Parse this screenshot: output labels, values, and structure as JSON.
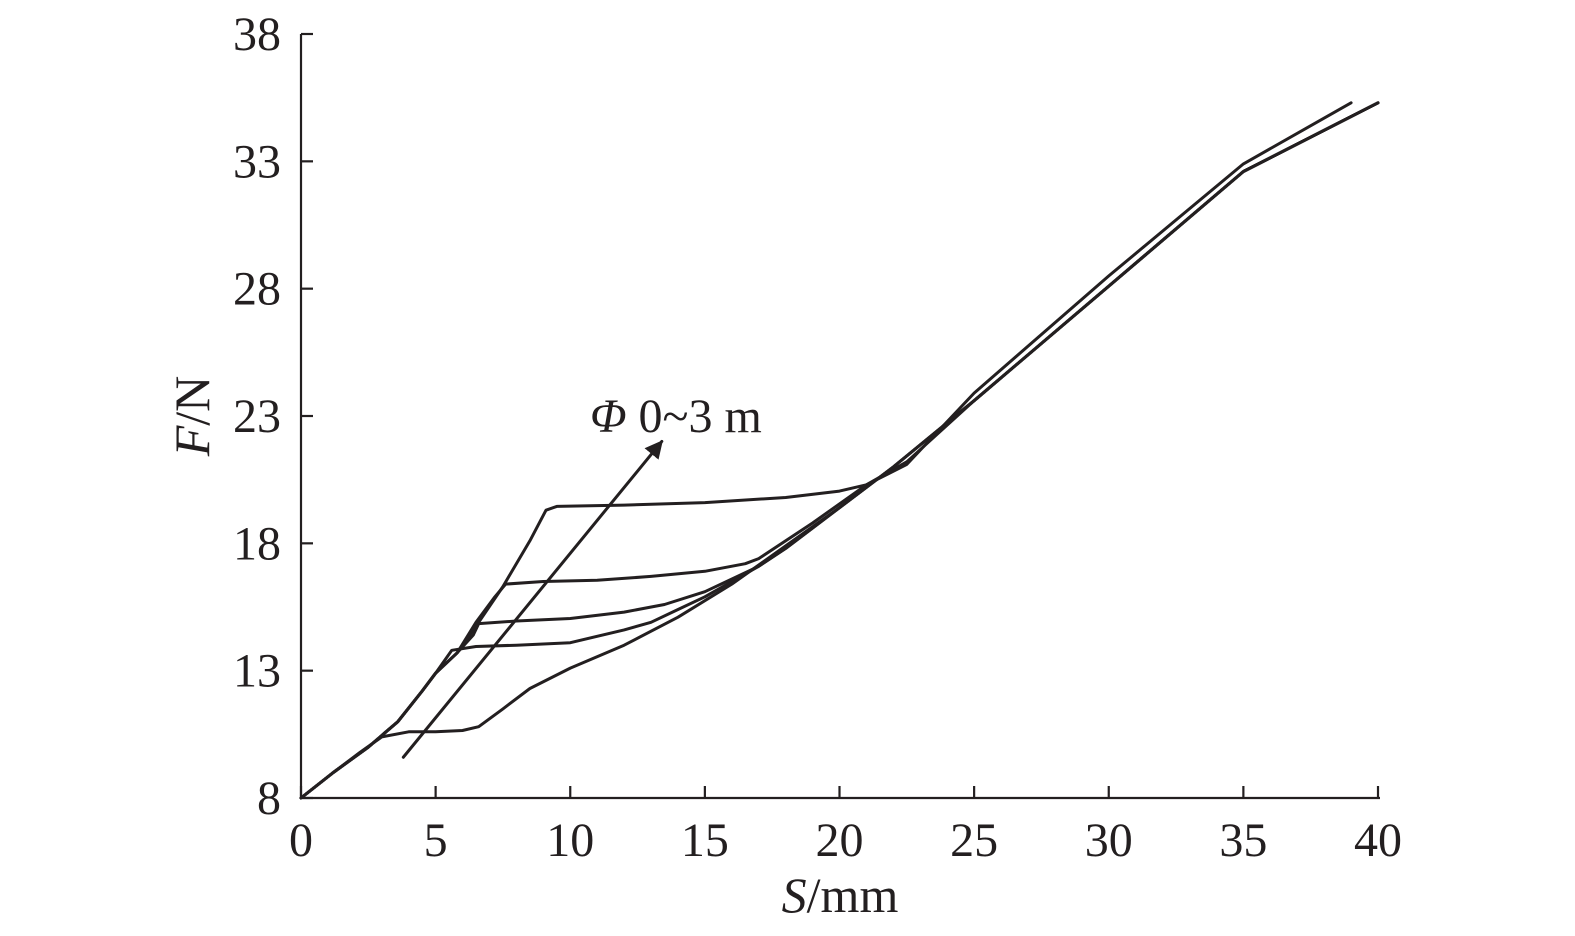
{
  "chart_data": {
    "type": "line",
    "xlabel": {
      "var": "S",
      "unit": "/mm"
    },
    "ylabel": {
      "var": "F",
      "unit": "/N"
    },
    "xlim": [
      0,
      40
    ],
    "ylim": [
      8,
      38
    ],
    "xticks": [
      0,
      5,
      10,
      15,
      20,
      25,
      30,
      35,
      40
    ],
    "yticks": [
      8,
      13,
      18,
      23,
      28,
      33,
      38
    ],
    "grid": false,
    "series": [
      {
        "points": [
          [
            0,
            8
          ],
          [
            1.2,
            9
          ],
          [
            2.2,
            9.8
          ],
          [
            3,
            10.4
          ],
          [
            4,
            10.6
          ],
          [
            5,
            10.6
          ],
          [
            6,
            10.65
          ],
          [
            6.6,
            10.8
          ],
          [
            7.5,
            11.5
          ],
          [
            8.5,
            12.3
          ],
          [
            10,
            13.1
          ],
          [
            12,
            14.0
          ],
          [
            14,
            15.1
          ],
          [
            16,
            16.4
          ],
          [
            18,
            17.9
          ],
          [
            20,
            19.4
          ],
          [
            22,
            21
          ],
          [
            25,
            23.6
          ],
          [
            30,
            28.1
          ],
          [
            35,
            32.6
          ],
          [
            40,
            35.3
          ]
        ]
      },
      {
        "points": [
          [
            0,
            8
          ],
          [
            1.2,
            9
          ],
          [
            2.5,
            10
          ],
          [
            3.6,
            11
          ],
          [
            4.5,
            12.2
          ],
          [
            5,
            12.9
          ],
          [
            5.6,
            13.8
          ],
          [
            6.5,
            13.95
          ],
          [
            8,
            14.0
          ],
          [
            10,
            14.1
          ],
          [
            12,
            14.6
          ],
          [
            13,
            14.9
          ],
          [
            14,
            15.4
          ],
          [
            15,
            15.9
          ],
          [
            16,
            16.5
          ],
          [
            17,
            17.1
          ],
          [
            18,
            17.8
          ],
          [
            20,
            19.4
          ],
          [
            22,
            21
          ],
          [
            25,
            23.6
          ],
          [
            30,
            28.1
          ],
          [
            35,
            32.6
          ],
          [
            40,
            35.3
          ]
        ]
      },
      {
        "points": [
          [
            0,
            8
          ],
          [
            1.2,
            9
          ],
          [
            2.5,
            10
          ],
          [
            3.6,
            11
          ],
          [
            4.5,
            12.2
          ],
          [
            5,
            12.9
          ],
          [
            5.8,
            13.7
          ],
          [
            6.4,
            14.4
          ],
          [
            6.6,
            14.85
          ],
          [
            8,
            14.95
          ],
          [
            10,
            15.05
          ],
          [
            12,
            15.3
          ],
          [
            13.5,
            15.6
          ],
          [
            15,
            16.1
          ],
          [
            17,
            17.1
          ],
          [
            18,
            17.8
          ],
          [
            20,
            19.4
          ],
          [
            22,
            21
          ],
          [
            25,
            23.6
          ],
          [
            30,
            28.1
          ],
          [
            35,
            32.6
          ],
          [
            40,
            35.3
          ]
        ]
      },
      {
        "points": [
          [
            0,
            8
          ],
          [
            1.2,
            9
          ],
          [
            2.5,
            10
          ],
          [
            3.6,
            11
          ],
          [
            4.5,
            12.2
          ],
          [
            5,
            12.9
          ],
          [
            5.8,
            13.7
          ],
          [
            6.5,
            14.9
          ],
          [
            7.2,
            15.9
          ],
          [
            7.6,
            16.4
          ],
          [
            9,
            16.5
          ],
          [
            11,
            16.55
          ],
          [
            13,
            16.7
          ],
          [
            15,
            16.9
          ],
          [
            16.5,
            17.2
          ],
          [
            17,
            17.4
          ],
          [
            19,
            18.8
          ],
          [
            21,
            20.3
          ],
          [
            22.5,
            21.2
          ],
          [
            25,
            23.6
          ],
          [
            30,
            28.1
          ],
          [
            35,
            32.6
          ],
          [
            40,
            35.3
          ]
        ]
      },
      {
        "points": [
          [
            0,
            8
          ],
          [
            1.2,
            9
          ],
          [
            2.5,
            10
          ],
          [
            3.6,
            11
          ],
          [
            4.5,
            12.2
          ],
          [
            5,
            12.9
          ],
          [
            5.8,
            13.7
          ],
          [
            6.6,
            14.9
          ],
          [
            7.5,
            16.3
          ],
          [
            8.5,
            18.1
          ],
          [
            9.1,
            19.3
          ],
          [
            9.5,
            19.45
          ],
          [
            12,
            19.5
          ],
          [
            15,
            19.6
          ],
          [
            18,
            19.8
          ],
          [
            20,
            20.05
          ],
          [
            21,
            20.3
          ],
          [
            22.5,
            21.1
          ],
          [
            25,
            23.9
          ],
          [
            30,
            28.5
          ],
          [
            35,
            32.9
          ],
          [
            39,
            35.3
          ]
        ]
      }
    ],
    "annotation": {
      "label_var": "Φ",
      "label_rest": " 0~3 m",
      "arrow_from": [
        3.8,
        9.6
      ],
      "arrow_to": [
        13.4,
        22.0
      ]
    }
  }
}
